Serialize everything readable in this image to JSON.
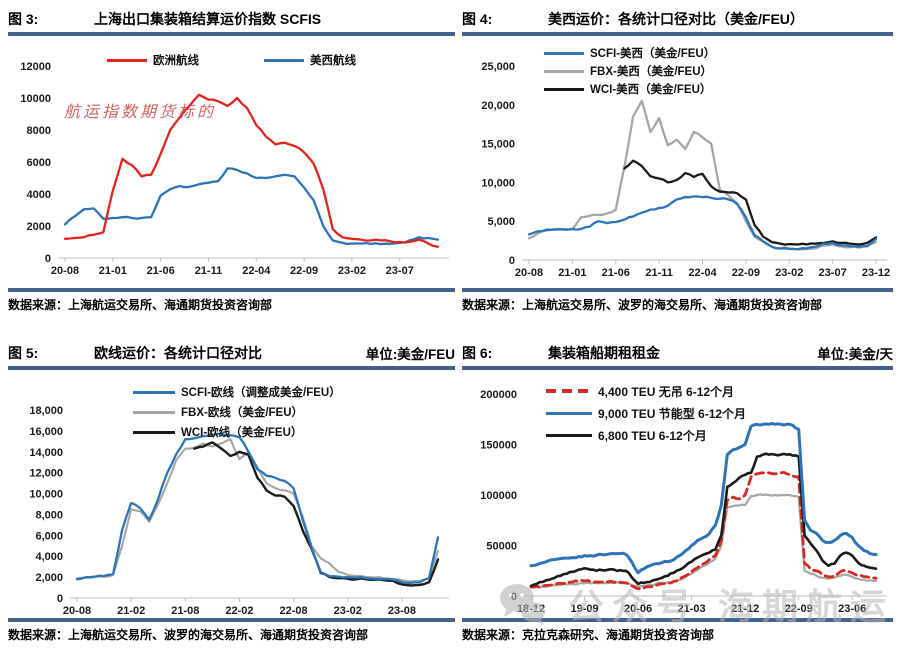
{
  "colors": {
    "divider": "#44618a",
    "axis": "#bfbfbf",
    "red": "#e02420",
    "blue": "#2e74b5",
    "gray": "#a6a6a6",
    "black": "#1a1a1a",
    "watermark_red": "#c33e3a",
    "watermark_gray": "#b7b7b7"
  },
  "panels": [
    {
      "fig_label": "图 3:",
      "title": "上海出口集装箱结算运价指数 SCFIS",
      "unit": "",
      "source": "数据来源：上海航运交易所、海通期货投资咨询部",
      "watermark": "航运指数期货标的"
    },
    {
      "fig_label": "图 4:",
      "title": "美西运价：各统计口径对比（美金/FEU）",
      "unit": "",
      "source": "数据来源：上海航运交易所、波罗的海交易所、海通期货投资咨询部",
      "watermark": ""
    },
    {
      "fig_label": "图 5:",
      "title": "欧线运价：各统计口径对比",
      "unit": "单位:美金/FEU",
      "source": "数据来源：上海航运交易所、波罗的海交易所、海通期货投资咨询部",
      "watermark": ""
    },
    {
      "fig_label": "图 6:",
      "title": "集装箱船期租租金",
      "unit": "单位:美金/天",
      "source": "数据来源：克拉克森研究、海通期货投资咨询部",
      "watermark": "公众号 海期航运"
    }
  ],
  "chart_data": [
    {
      "type": "line",
      "title": "上海出口集装箱结算运价指数 SCFIS",
      "xlabel": "",
      "ylabel": "",
      "x_start": "20-08",
      "x_interval_months": 1,
      "ylim": [
        0,
        12000
      ],
      "ystep": 2000,
      "comma": false,
      "grid": false,
      "legend_position": "top-center",
      "tick_labels": [
        "20-08",
        "21-01",
        "21-06",
        "21-11",
        "22-04",
        "22-09",
        "23-02",
        "23-07"
      ],
      "tick_indices": [
        0,
        5,
        10,
        15,
        20,
        25,
        30,
        35
      ],
      "series": [
        {
          "name": "欧洲航线",
          "color": "#e02420",
          "dash": false,
          "values": [
            1200,
            1250,
            1300,
            1450,
            1600,
            4200,
            6200,
            5800,
            5100,
            5200,
            6500,
            8000,
            8800,
            9500,
            10200,
            9900,
            9800,
            9500,
            10000,
            9400,
            8300,
            7600,
            7100,
            7200,
            7000,
            6600,
            5900,
            4300,
            1800,
            1300,
            1200,
            1150,
            1100,
            1100,
            1050,
            1000,
            1000,
            1150,
            900,
            700
          ]
        },
        {
          "name": "美西航线",
          "color": "#2e74b5",
          "dash": false,
          "values": [
            2100,
            2600,
            3050,
            3100,
            2450,
            2500,
            2550,
            2500,
            2500,
            2550,
            3900,
            4300,
            4500,
            4450,
            4600,
            4700,
            4800,
            5600,
            5500,
            5300,
            5000,
            5000,
            5100,
            5200,
            5100,
            4400,
            3600,
            2000,
            1100,
            950,
            900,
            900,
            880,
            870,
            880,
            950,
            1100,
            1300,
            1250,
            1150
          ]
        }
      ]
    },
    {
      "type": "line",
      "title": "美西运价：各统计口径对比（美金/FEU）",
      "xlabel": "",
      "ylabel": "",
      "x_start": "20-08",
      "x_interval_months": 1,
      "ylim": [
        0,
        25000
      ],
      "ystep": 5000,
      "comma": true,
      "grid": false,
      "legend_position": "top-left",
      "tick_labels": [
        "20-08",
        "21-01",
        "21-06",
        "21-11",
        "22-04",
        "22-09",
        "23-02",
        "23-07",
        "23-12"
      ],
      "tick_indices": [
        0,
        5,
        10,
        15,
        20,
        25,
        30,
        35,
        40
      ],
      "series": [
        {
          "name": "SCFI-美西（美金/FEU）",
          "color": "#2e74b5",
          "dash": false,
          "values": [
            3300,
            3700,
            3900,
            3950,
            3950,
            4000,
            4000,
            4300,
            5000,
            4750,
            4900,
            5200,
            5600,
            6100,
            6500,
            6700,
            7000,
            7800,
            8100,
            8200,
            8100,
            8000,
            7900,
            7800,
            7200,
            5500,
            3200,
            2400,
            1700,
            1500,
            1450,
            1400,
            1500,
            1700,
            2100,
            2200,
            1900,
            1750,
            1700,
            1800,
            2700
          ]
        },
        {
          "name": "FBX-美西（美金/FEU）",
          "color": "#a6a6a6",
          "dash": false,
          "values": [
            2800,
            3400,
            3800,
            3900,
            3900,
            4000,
            5500,
            5700,
            5800,
            6000,
            6500,
            12000,
            18500,
            20500,
            16500,
            18300,
            14800,
            15500,
            14300,
            16500,
            15800,
            15000,
            9000,
            8300,
            7300,
            5000,
            3000,
            2400,
            1700,
            1450,
            1400,
            1350,
            1400,
            1500,
            1900,
            2000,
            1750,
            1650,
            1600,
            1750,
            2300
          ]
        },
        {
          "name": "WCI-美西（美金/FEU）",
          "color": "#1a1a1a",
          "dash": false,
          "values": [
            null,
            null,
            null,
            null,
            null,
            null,
            null,
            null,
            null,
            null,
            null,
            11800,
            12800,
            12100,
            10800,
            10500,
            10000,
            10300,
            11200,
            10700,
            11100,
            9500,
            8800,
            8700,
            8600,
            7800,
            4500,
            3000,
            2300,
            2100,
            2050,
            2000,
            2000,
            2100,
            2200,
            2400,
            2200,
            2100,
            2000,
            2200,
            2900
          ]
        }
      ]
    },
    {
      "type": "line",
      "title": "欧线运价：各统计口径对比",
      "xlabel": "",
      "ylabel": "单位:美金/FEU",
      "x_start": "20-08",
      "x_interval_months": 1,
      "ylim": [
        0,
        18000
      ],
      "ystep": 2000,
      "comma": true,
      "grid": false,
      "legend_position": "top-left",
      "tick_labels": [
        "20-08",
        "21-02",
        "21-08",
        "22-02",
        "22-08",
        "23-02",
        "23-08"
      ],
      "tick_indices": [
        0,
        6,
        12,
        18,
        24,
        30,
        36
      ],
      "series": [
        {
          "name": "SCFI-欧线（调整成美金/FEU）",
          "color": "#2e74b5",
          "dash": false,
          "values": [
            1800,
            2000,
            2050,
            2100,
            2300,
            6500,
            9100,
            8600,
            7500,
            9500,
            12000,
            13800,
            15200,
            15300,
            15500,
            15600,
            15700,
            15600,
            15400,
            14000,
            12300,
            11700,
            11500,
            11200,
            10500,
            7500,
            4800,
            2500,
            2100,
            2050,
            2000,
            1950,
            1900,
            1850,
            1800,
            1750,
            1500,
            1450,
            1500,
            1900,
            5800
          ]
        },
        {
          "name": "FBX-欧线（美金/FEU）",
          "color": "#a6a6a6",
          "dash": false,
          "values": [
            1900,
            1950,
            2000,
            2050,
            2200,
            5000,
            8500,
            8300,
            7300,
            9000,
            11000,
            13200,
            14300,
            14400,
            14800,
            14500,
            14800,
            15200,
            13300,
            14000,
            12500,
            11000,
            10500,
            10300,
            10000,
            7800,
            5000,
            3800,
            3300,
            2500,
            2200,
            2100,
            2000,
            1950,
            1900,
            1850,
            1700,
            1600,
            1650,
            1900,
            4500
          ]
        },
        {
          "name": "WCI-欧线（美金/FEU）",
          "color": "#1a1a1a",
          "dash": false,
          "values": [
            null,
            null,
            null,
            null,
            null,
            null,
            null,
            null,
            null,
            null,
            null,
            null,
            null,
            14300,
            14500,
            14900,
            14300,
            13600,
            14000,
            13700,
            11500,
            10300,
            9800,
            9700,
            8800,
            6500,
            4700,
            2400,
            2000,
            1900,
            1850,
            1800,
            1800,
            1750,
            1700,
            1650,
            1300,
            1200,
            1250,
            1500,
            3700
          ]
        }
      ]
    },
    {
      "type": "line",
      "title": "集装箱船期租租金",
      "xlabel": "",
      "ylabel": "单位:美金/天",
      "x_start": "18-12",
      "x_interval_months": 1,
      "ylim": [
        0,
        200000
      ],
      "ystep": 50000,
      "comma": false,
      "grid": false,
      "legend_position": "top-left",
      "tick_labels": [
        "18-12",
        "19-09",
        "20-06",
        "21-03",
        "21-12",
        "22-09",
        "23-06"
      ],
      "tick_indices": [
        0,
        9,
        18,
        27,
        36,
        45,
        54
      ],
      "series": [
        {
          "name": "4,400 TEU 无吊 6-12个月",
          "color": "#d22a24",
          "dash": true,
          "values": [
            9000,
            9500,
            10000,
            10500,
            11500,
            12500,
            13500,
            14000,
            14500,
            15000,
            14500,
            14000,
            14000,
            14000,
            13500,
            13500,
            13000,
            10000,
            7000,
            8000,
            9000,
            10500,
            12000,
            13000,
            14500,
            17000,
            20000,
            24000,
            28000,
            32000,
            36000,
            40000,
            55000,
            95000,
            98000,
            96000,
            100000,
            118000,
            121000,
            122000,
            122000,
            121000,
            122000,
            121000,
            119000,
            118000,
            32000,
            27000,
            25000,
            21000,
            19000,
            20000,
            24000,
            25000,
            23000,
            20000,
            19000,
            18000,
            17500
          ]
        },
        {
          "name": "9,000 TEU 节能型 6-12个月",
          "color": "#2e74b5",
          "dash": false,
          "values": [
            30000,
            31000,
            33000,
            35000,
            36000,
            37000,
            37500,
            38000,
            39000,
            40000,
            40000,
            40500,
            41000,
            41500,
            42000,
            42000,
            41000,
            33000,
            23000,
            27000,
            30000,
            32000,
            33000,
            34000,
            36000,
            40000,
            45000,
            50000,
            55000,
            58000,
            62000,
            70000,
            90000,
            140000,
            145000,
            147000,
            150000,
            168000,
            170000,
            170000,
            170000,
            170000,
            170000,
            170000,
            169000,
            165000,
            75000,
            65000,
            62000,
            55000,
            53000,
            55000,
            60000,
            62000,
            58000,
            50000,
            45000,
            42000,
            41000
          ]
        },
        {
          "name": "6,800 TEU 6-12个月",
          "color": "#1a1a1a",
          "dash": false,
          "values": [
            10000,
            12000,
            14000,
            16000,
            18000,
            20000,
            22000,
            24000,
            26000,
            27500,
            26000,
            25000,
            25500,
            26000,
            26000,
            25500,
            25000,
            18000,
            12000,
            13000,
            14000,
            16000,
            18000,
            20000,
            23000,
            26000,
            30000,
            34000,
            38000,
            41000,
            43000,
            46000,
            60000,
            108000,
            112000,
            117000,
            120000,
            122000,
            138000,
            140000,
            140000,
            140000,
            140000,
            140000,
            139000,
            138000,
            60000,
            52000,
            45000,
            35000,
            30000,
            32000,
            40000,
            43000,
            40000,
            33000,
            30000,
            28000,
            27000
          ]
        },
        {
          "name": "",
          "color": "#a6a6a6",
          "dash": false,
          "values": [
            8500,
            9000,
            9500,
            10000,
            10500,
            11000,
            11500,
            12000,
            12200,
            12500,
            12500,
            12800,
            13000,
            13000,
            13000,
            12800,
            12500,
            10500,
            9500,
            10000,
            11000,
            12000,
            13000,
            13500,
            14500,
            16000,
            19000,
            22000,
            26000,
            30000,
            33000,
            37000,
            50000,
            88000,
            89000,
            89500,
            90000,
            99000,
            100000,
            100000,
            100000,
            100000,
            100000,
            100000,
            99000,
            98000,
            25000,
            22000,
            20000,
            18000,
            17000,
            18000,
            20000,
            21000,
            19000,
            17000,
            16000,
            15500,
            15000
          ]
        }
      ]
    }
  ]
}
